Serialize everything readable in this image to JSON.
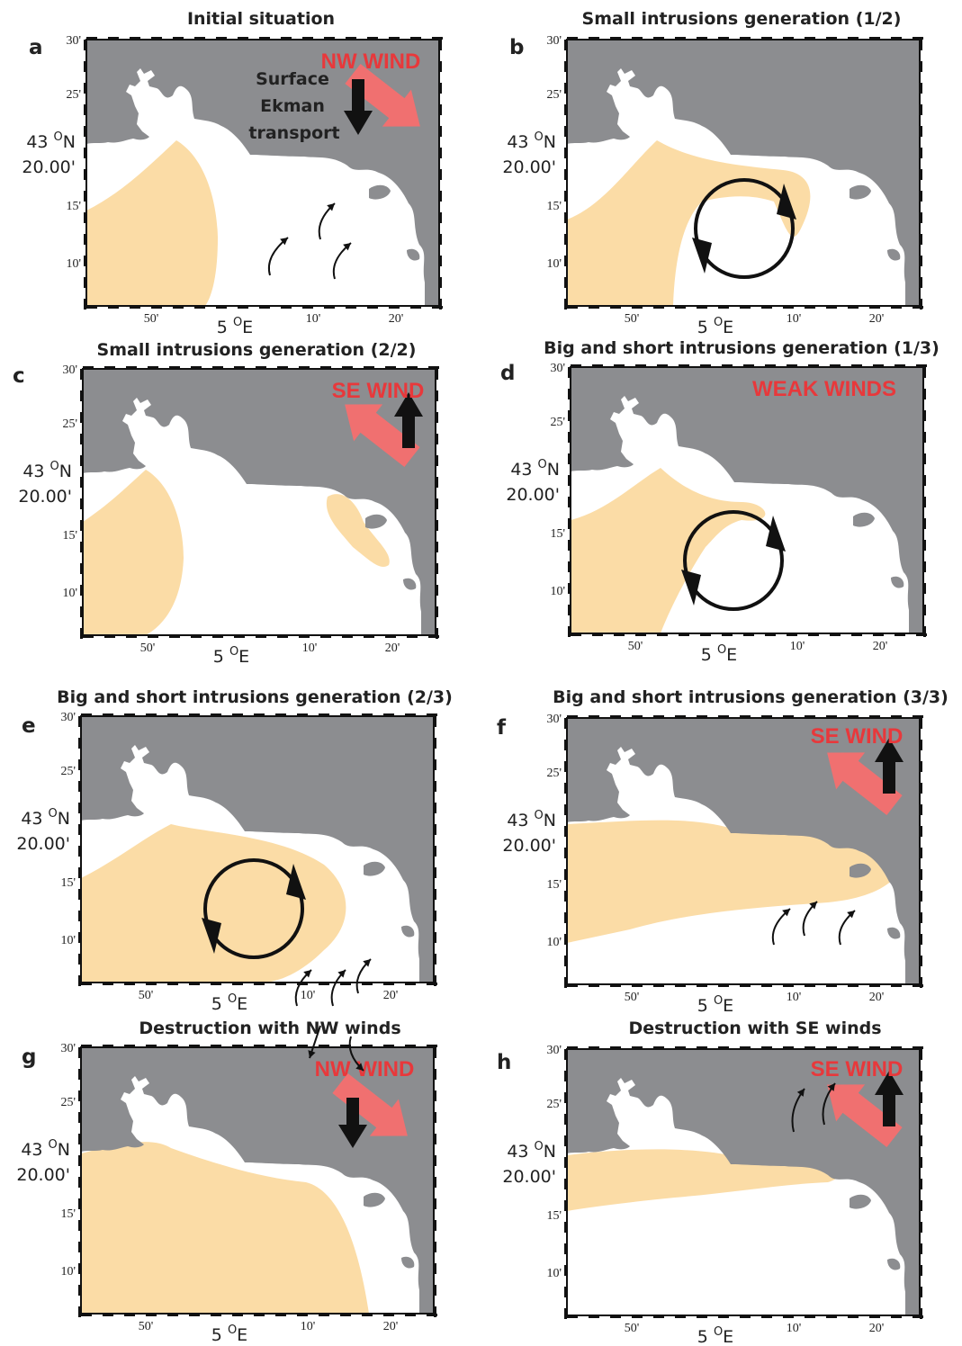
{
  "colors": {
    "land": "#8c8d90",
    "sea": "#ffffff",
    "plume": "#fbdca6",
    "wind_arrow": "#f07070",
    "wind_text": "#e8383b",
    "ekman_arrow": "#111111"
  },
  "axes": {
    "y_ticks": [
      "30'",
      "25'",
      "15'",
      "10'"
    ],
    "y_label_lat": "43",
    "y_label_unit": "N",
    "y_label_min": "20.00'",
    "x_ticks": [
      "50'",
      "10'",
      "20'"
    ],
    "x_label_deg": "5",
    "x_label_unit": "E",
    "degree_symbol": "O"
  },
  "panels": [
    {
      "letter": "a",
      "title": "Initial situation",
      "wind_label": "NW WIND",
      "ekman_lines": [
        "Surface",
        "Ekman",
        "transport"
      ]
    },
    {
      "letter": "b",
      "title": "Small intrusions generation (1/2)",
      "wind_label": ""
    },
    {
      "letter": "c",
      "title": "Small intrusions generation (2/2)",
      "wind_label": "SE WIND"
    },
    {
      "letter": "d",
      "title": "Big and short intrusions generation (1/3)",
      "wind_label": "WEAK WINDS"
    },
    {
      "letter": "e",
      "title": "Big and short intrusions generation (2/3)",
      "wind_label": ""
    },
    {
      "letter": "f",
      "title": "Big and short intrusions generation (3/3)",
      "wind_label": "SE WIND"
    },
    {
      "letter": "g",
      "title": "Destruction with NW winds",
      "wind_label": "NW WIND"
    },
    {
      "letter": "h",
      "title": "Destruction with SE winds",
      "wind_label": "SE WIND"
    }
  ]
}
